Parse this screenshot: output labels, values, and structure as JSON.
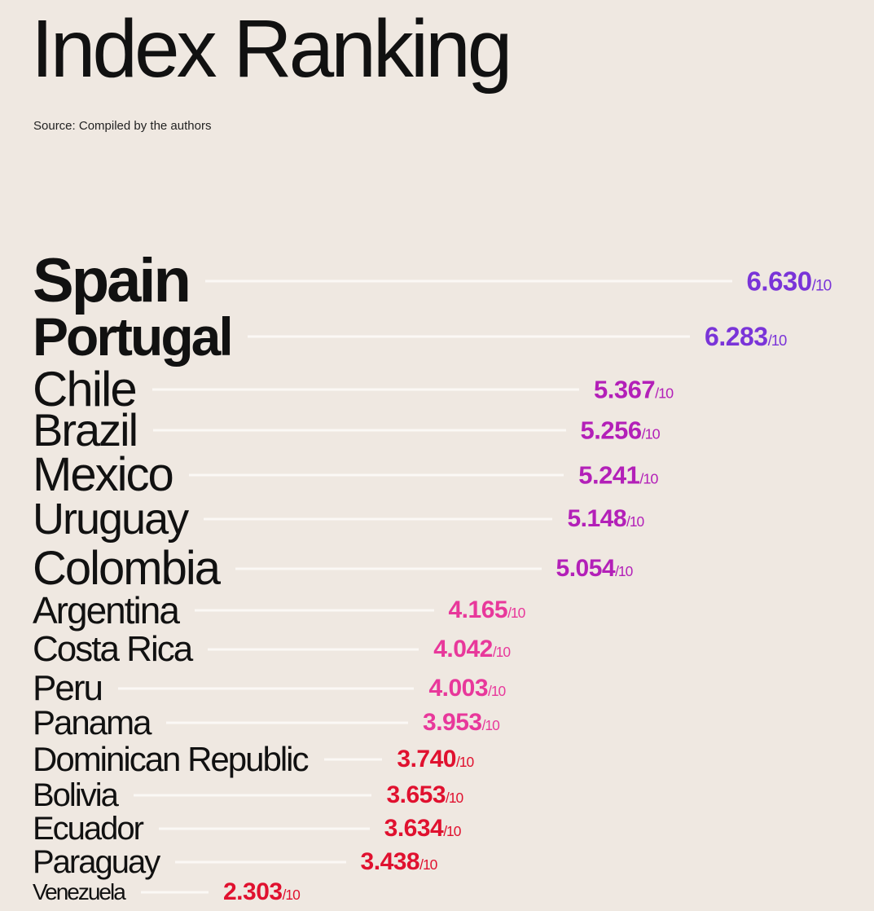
{
  "title": "Index Ranking",
  "source": "Source: Compiled by the authors",
  "chart_data": {
    "type": "bar",
    "title": "Index Ranking",
    "subtitle": "Source: Compiled by the authors",
    "denominator": "/10",
    "categories": [
      "Spain",
      "Portugal",
      "Chile",
      "Brazil",
      "Mexico",
      "Uruguay",
      "Colombia",
      "Argentina",
      "Costa Rica",
      "Peru",
      "Panama",
      "Dominican Republic",
      "Bolivia",
      "Ecuador",
      "Paraguay",
      "Venezuela"
    ],
    "values": [
      6.63,
      6.283,
      5.367,
      5.256,
      5.241,
      5.148,
      5.054,
      4.165,
      4.042,
      4.003,
      3.953,
      3.74,
      3.653,
      3.634,
      3.438,
      2.303
    ],
    "value_labels": [
      "6.630",
      "6.283",
      "5.367",
      "5.256",
      "5.241",
      "5.148",
      "5.054",
      "4.165",
      "4.042",
      "4.003",
      "3.953",
      "3.740",
      "3.653",
      "3.634",
      "3.438",
      "2.303"
    ],
    "colors": [
      "#7a34d8",
      "#7a34d8",
      "#b320b8",
      "#b320b8",
      "#b320b8",
      "#b320b8",
      "#b320b8",
      "#e8389b",
      "#e8389b",
      "#e8389b",
      "#e8389b",
      "#e0112f",
      "#e0112f",
      "#e0112f",
      "#e0112f",
      "#e0112f"
    ],
    "ylim": [
      0,
      10
    ]
  }
}
